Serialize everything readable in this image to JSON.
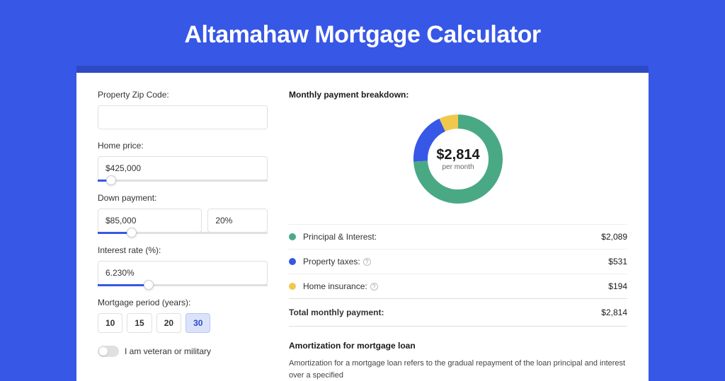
{
  "page": {
    "title": "Altamahaw Mortgage Calculator",
    "background_color": "#3757e6",
    "strip_color": "#2e49c4",
    "panel_color": "#ffffff"
  },
  "form": {
    "zip": {
      "label": "Property Zip Code:",
      "value": ""
    },
    "home_price": {
      "label": "Home price:",
      "value": "$425,000",
      "slider_pct": 8
    },
    "down_payment": {
      "label": "Down payment:",
      "value": "$85,000",
      "pct": "20%",
      "slider_pct": 20
    },
    "interest": {
      "label": "Interest rate (%):",
      "value": "6.230%",
      "slider_pct": 30
    },
    "period": {
      "label": "Mortgage period (years):",
      "options": [
        "10",
        "15",
        "20",
        "30"
      ],
      "selected": "30"
    },
    "veteran": {
      "label": "I am veteran or military",
      "checked": false
    }
  },
  "breakdown": {
    "title": "Monthly payment breakdown:",
    "center_amount": "$2,814",
    "center_sub": "per month",
    "items": [
      {
        "label": "Principal & Interest:",
        "value": "$2,089",
        "color": "#4aa985",
        "pct": 74,
        "info": false
      },
      {
        "label": "Property taxes:",
        "value": "$531",
        "color": "#3757e6",
        "pct": 19,
        "info": true
      },
      {
        "label": "Home insurance:",
        "value": "$194",
        "color": "#f0c84c",
        "pct": 7,
        "info": true
      }
    ],
    "total": {
      "label": "Total monthly payment:",
      "value": "$2,814"
    }
  },
  "amortization": {
    "title": "Amortization for mortgage loan",
    "text": "Amortization for a mortgage loan refers to the gradual repayment of the loan principal and interest over a specified"
  }
}
